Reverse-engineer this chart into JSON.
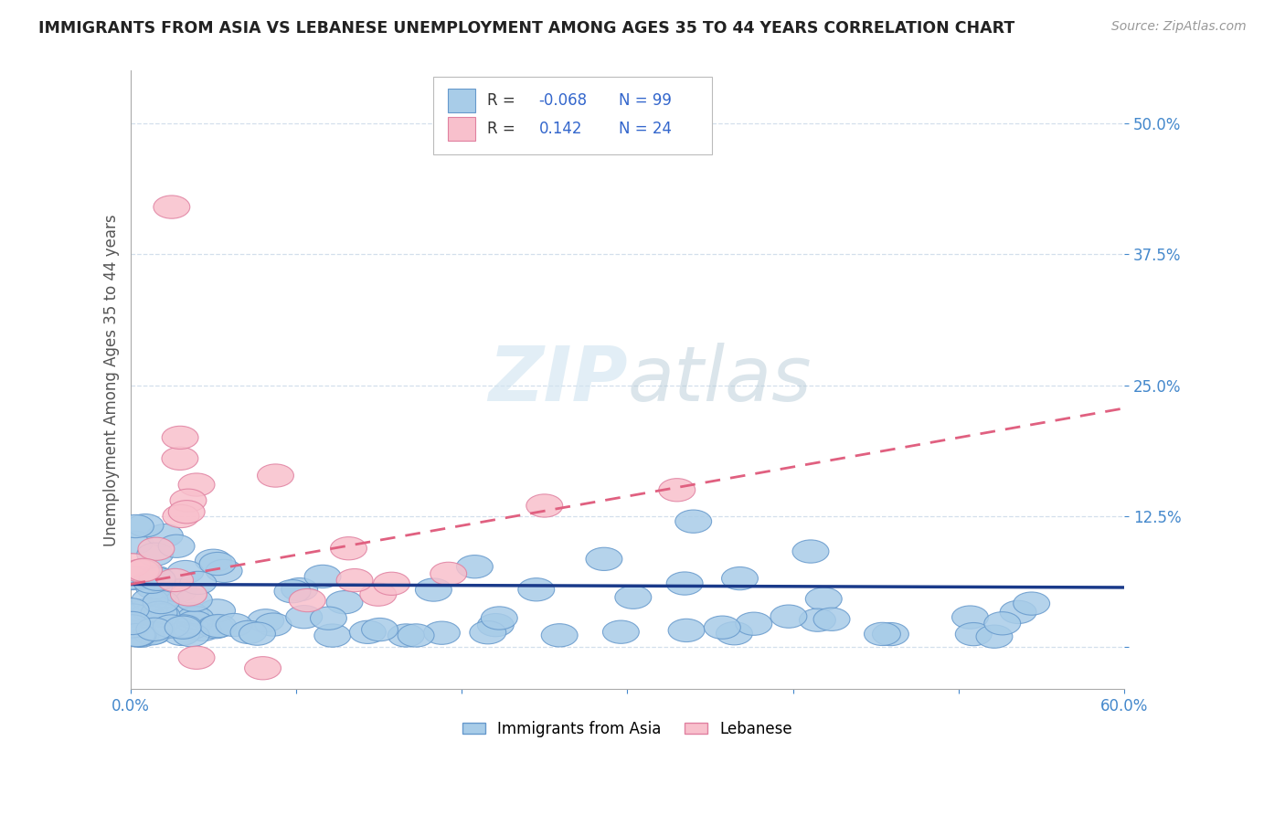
{
  "title": "IMMIGRANTS FROM ASIA VS LEBANESE UNEMPLOYMENT AMONG AGES 35 TO 44 YEARS CORRELATION CHART",
  "source": "Source: ZipAtlas.com",
  "ylabel": "Unemployment Among Ages 35 to 44 years",
  "xlim": [
    0.0,
    0.6
  ],
  "ylim": [
    -0.04,
    0.55
  ],
  "yticks": [
    0.0,
    0.125,
    0.25,
    0.375,
    0.5
  ],
  "ytick_labels": [
    "",
    "12.5%",
    "25.0%",
    "37.5%",
    "50.0%"
  ],
  "xticks": [
    0.0,
    0.1,
    0.2,
    0.3,
    0.4,
    0.5,
    0.6
  ],
  "xtick_labels": [
    "0.0%",
    "",
    "",
    "",
    "",
    "",
    "60.0%"
  ],
  "watermark": "ZIPatlas",
  "series_asia": {
    "color": "#a8cce8",
    "edge_color": "#6699cc",
    "R": -0.068,
    "N": 99,
    "trend_color": "#1a3a8a",
    "trend_intercept": 0.06,
    "trend_slope": -0.005
  },
  "series_lebanese": {
    "color": "#f8c0cc",
    "edge_color": "#e080a0",
    "R": 0.142,
    "N": 24,
    "trend_color": "#e06080",
    "trend_intercept": 0.06,
    "trend_slope": 0.28
  },
  "background_color": "#ffffff",
  "grid_color": "#c8d8e8",
  "title_color": "#222222",
  "tick_color": "#4488cc",
  "legend_r_color": "#3366cc",
  "legend_text_color": "#333333",
  "legend_n_color": "#3366cc",
  "watermark_color": "#d0e4f0"
}
